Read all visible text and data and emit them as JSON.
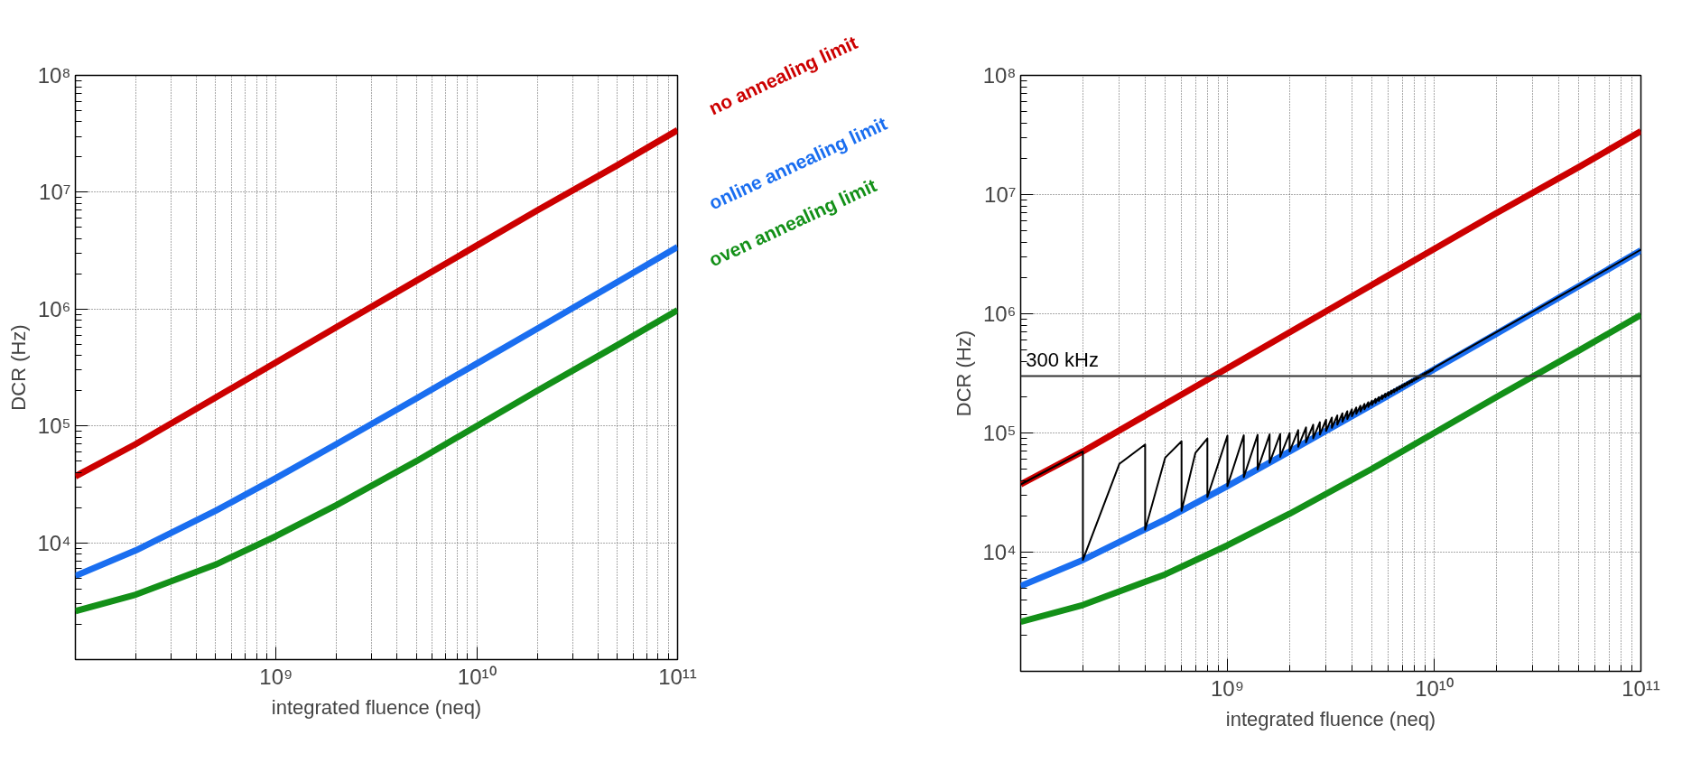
{
  "chart_data": [
    {
      "type": "line",
      "xlabel": "integrated fluence (neq)",
      "ylabel": "DCR (Hz)",
      "log": "xy",
      "grid": true,
      "xlim": [
        100000000.0,
        100000000000.0
      ],
      "ylim": [
        1000,
        100000000.0
      ],
      "xticks": [
        {
          "value": 100000000.0,
          "label": null
        },
        {
          "value": 1000000000.0,
          "label": "10⁹"
        },
        {
          "value": 10000000000.0,
          "label": "10¹⁰"
        },
        {
          "value": 100000000000.0,
          "label": "10¹¹"
        }
      ],
      "yticks": [
        {
          "value": 1000,
          "label": null
        },
        {
          "value": 10000,
          "label": "10⁴"
        },
        {
          "value": 100000,
          "label": "10⁵"
        },
        {
          "value": 1000000,
          "label": "10⁶"
        },
        {
          "value": 10000000,
          "label": "10⁷"
        },
        {
          "value": 100000000,
          "label": "10⁸"
        }
      ],
      "x": [
        100000000.0,
        200000000.0,
        500000000.0,
        1000000000.0,
        2000000000.0,
        5000000000.0,
        10000000000.0,
        20000000000.0,
        50000000000.0,
        100000000000.0
      ],
      "series": [
        {
          "name": "no annealing limit",
          "color": "#cc0000",
          "values": [
            37000,
            70000,
            175000,
            350000,
            700000,
            1750000,
            3500000,
            7000000,
            17000000,
            34000000
          ]
        },
        {
          "name": "online annealing limit",
          "color": "#1a6ef0",
          "values": [
            5200,
            8600,
            18800,
            35800,
            70000,
            172000,
            342000,
            680000,
            1700000,
            3400000
          ]
        },
        {
          "name": "oven annealing limit",
          "color": "#139018",
          "values": [
            2600,
            3600,
            6500,
            11400,
            21000,
            50000,
            100000,
            200000,
            490000,
            980000
          ]
        }
      ]
    },
    {
      "type": "line",
      "xlabel": "integrated fluence (neq)",
      "ylabel": "DCR (Hz)",
      "log": "xy",
      "grid": true,
      "xlim": [
        100000000.0,
        100000000000.0
      ],
      "ylim": [
        1000,
        100000000.0
      ],
      "xticks": [
        {
          "value": 100000000.0,
          "label": null
        },
        {
          "value": 1000000000.0,
          "label": "10⁹"
        },
        {
          "value": 10000000000.0,
          "label": "10¹⁰"
        },
        {
          "value": 100000000000.0,
          "label": "10¹¹"
        }
      ],
      "yticks": [
        {
          "value": 1000,
          "label": null
        },
        {
          "value": 10000,
          "label": "10⁴"
        },
        {
          "value": 100000,
          "label": "10⁵"
        },
        {
          "value": 1000000,
          "label": "10⁶"
        },
        {
          "value": 10000000,
          "label": "10⁷"
        },
        {
          "value": 100000000,
          "label": "10⁸"
        }
      ],
      "ref_lines": [
        {
          "axis": "y",
          "value": 300000,
          "label": "300 kHz",
          "color": "#333333"
        }
      ],
      "x": [
        100000000.0,
        200000000.0,
        500000000.0,
        1000000000.0,
        2000000000.0,
        5000000000.0,
        10000000000.0,
        20000000000.0,
        50000000000.0,
        100000000000.0
      ],
      "series": [
        {
          "color": "#cc0000",
          "values": [
            37000,
            70000,
            175000,
            350000,
            700000,
            1750000,
            3500000,
            7000000,
            17000000,
            34000000
          ]
        },
        {
          "color": "#1a6ef0",
          "values": [
            5200,
            8600,
            18800,
            35800,
            70000,
            172000,
            342000,
            680000,
            1700000,
            3400000
          ]
        },
        {
          "color": "#139018",
          "values": [
            2600,
            3600,
            6500,
            11400,
            21000,
            50000,
            100000,
            200000,
            490000,
            980000
          ]
        },
        {
          "color": "#000000",
          "x": [
            100000000.0,
            200000000.0,
            200000000.0,
            300000000.0,
            400000000.0,
            400000000.0,
            500000000.0,
            600000000.0,
            600000000.0,
            700000000.0,
            800000000.0,
            800000000.0,
            1000000000.0,
            1000000000.0,
            1200000000.0,
            1200000000.0,
            1400000000.0,
            1400000000.0,
            1600000000.0,
            1600000000.0,
            1800000000.0,
            1800000000.0,
            2000000000.0,
            2000000000.0,
            2200000000.0,
            2200000000.0,
            2400000000.0,
            2400000000.0,
            2600000000.0,
            2600000000.0,
            2800000000.0,
            2800000000.0,
            3000000000.0,
            3000000000.0,
            3200000000.0,
            3200000000.0,
            3400000000.0,
            3400000000.0,
            3600000000.0,
            3600000000.0,
            3800000000.0,
            3800000000.0,
            4000000000.0,
            4000000000.0,
            4200000000.0,
            4200000000.0,
            4400000000.0,
            4400000000.0,
            4600000000.0,
            4600000000.0,
            4800000000.0,
            4800000000.0,
            5000000000.0,
            5000000000.0,
            5200000000.0,
            5200000000.0,
            5400000000.0,
            5400000000.0,
            5600000000.0,
            5600000000.0,
            5800000000.0,
            5800000000.0,
            6000000000.0,
            6000000000.0,
            6200000000.0,
            6200000000.0,
            6400000000.0,
            6400000000.0,
            6600000000.0,
            6600000000.0,
            6800000000.0,
            6800000000.0,
            7000000000.0,
            7000000000.0,
            7200000000.0,
            7200000000.0,
            7400000000.0,
            7400000000.0,
            7600000000.0,
            7600000000.0,
            7800000000.0,
            7800000000.0,
            8000000000.0,
            8000000000.0,
            8200000000.0,
            8200000000.0,
            8400000000.0,
            8400000000.0,
            8600000000.0,
            8600000000.0,
            8800000000.0,
            8800000000.0,
            9000000000.0,
            9000000000.0,
            9200000000.0,
            9200000000.0,
            9400000000.0,
            9400000000.0,
            9600000000.0,
            9600000000.0,
            9800000000.0,
            9800000000.0,
            10000000000.0,
            20000000000.0,
            50000000000.0,
            100000000000.0
          ],
          "values": [
            37000,
            70000,
            8600,
            55000,
            80000,
            15400,
            62000,
            85000,
            22200,
            68000,
            90000,
            29000,
            94800,
            35800,
            95600,
            42600,
            96400,
            49400,
            97200,
            56200,
            98000,
            63000,
            99800,
            69800,
            105600,
            76600,
            111400,
            83400,
            117200,
            90200,
            123000,
            97000,
            128800,
            103800,
            134600,
            110600,
            140400,
            117400,
            146200,
            124200,
            152000,
            131000,
            157800,
            137800,
            163600,
            144600,
            169400,
            151400,
            175200,
            158200,
            181000,
            165000,
            186800,
            171800,
            193400,
            178600,
            200000,
            185400,
            206600,
            192200,
            213200,
            199000,
            219800,
            205800,
            226400,
            212600,
            233000,
            219400,
            239600,
            226200,
            246200,
            233000,
            252800,
            239800,
            259400,
            246600,
            266000,
            253400,
            272600,
            260200,
            279200,
            267000,
            285800,
            273800,
            292400,
            280600,
            299000,
            287400,
            305600,
            294200,
            312200,
            301000,
            318800,
            307800,
            325400,
            314600,
            332000,
            321400,
            338600,
            328200,
            345200,
            335000,
            351800,
            700000,
            1720000,
            3450000
          ]
        }
      ]
    }
  ]
}
